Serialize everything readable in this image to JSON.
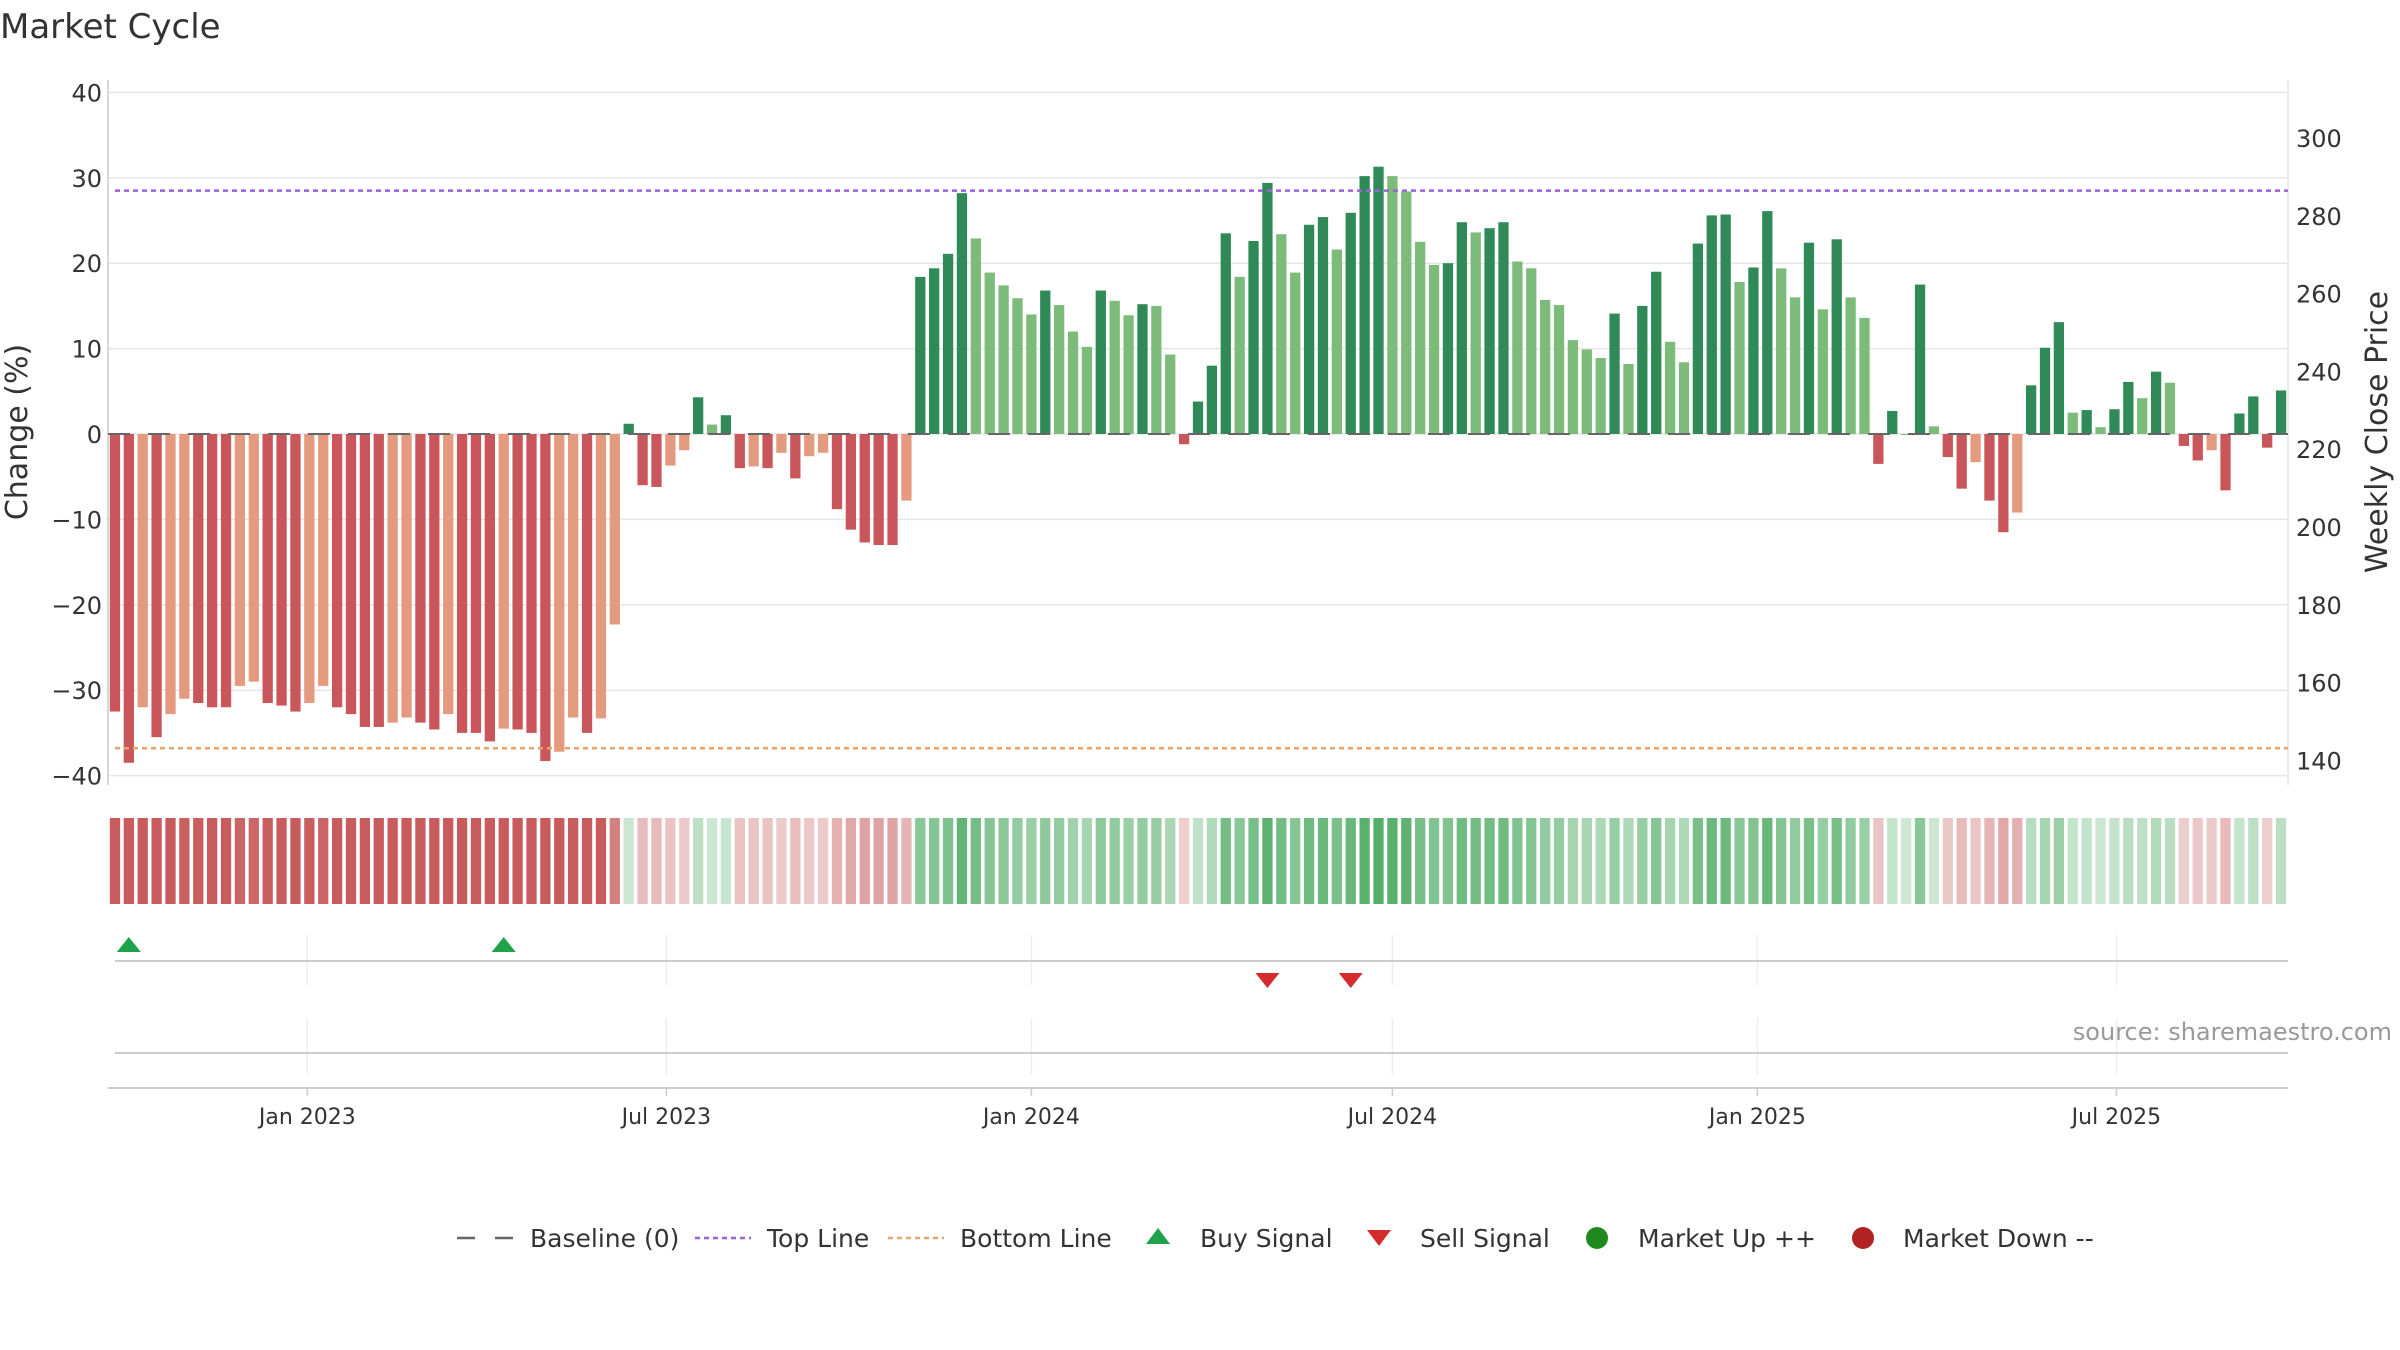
{
  "chart_data": {
    "type": "bar",
    "title": "Market Cycle",
    "ylabel": "Change (%)",
    "y2label": "Weekly Close Price",
    "ylim": [
      -40,
      40
    ],
    "y2lim": [
      140,
      300
    ],
    "yticks": [
      40,
      30,
      20,
      10,
      0,
      -10,
      -20,
      -30,
      -40
    ],
    "y2ticks": [
      300,
      280,
      260,
      240,
      220,
      200,
      180,
      160,
      140
    ],
    "top_line": 28.5,
    "bottom_line": -36.8,
    "x_start": "2022-09-26",
    "week_days": 7,
    "xticks": [
      {
        "date": "2023-01-01",
        "label": "Jan 2023"
      },
      {
        "date": "2023-07-01",
        "label": "Jul 2023"
      },
      {
        "date": "2024-01-01",
        "label": "Jan 2024"
      },
      {
        "date": "2024-07-01",
        "label": "Jul 2024"
      },
      {
        "date": "2025-01-01",
        "label": "Jan 2025"
      },
      {
        "date": "2025-07-01",
        "label": "Jul 2025"
      }
    ],
    "values": [
      -32.5,
      -38.5,
      -32,
      -35.5,
      -32.8,
      -31,
      -31.5,
      -32,
      -32,
      -29.5,
      -29,
      -31.5,
      -31.8,
      -32.5,
      -31.5,
      -29.5,
      -32,
      -32.8,
      -34.3,
      -34.3,
      -33.8,
      -33.2,
      -33.8,
      -34.6,
      -32.8,
      -35,
      -35,
      -36,
      -34.5,
      -34.6,
      -35,
      -38.3,
      -37.2,
      -33.2,
      -35,
      -33.3,
      -22.3,
      1.2,
      -6,
      -6.2,
      -3.7,
      -1.9,
      4.3,
      1.1,
      2.2,
      -4,
      -3.8,
      -4,
      -2.2,
      -5.2,
      -2.6,
      -2.2,
      -8.8,
      -11.2,
      -12.7,
      -13,
      -13,
      -7.8,
      18.4,
      19.4,
      21.1,
      28.2,
      22.9,
      18.9,
      17.4,
      15.9,
      14,
      16.8,
      15.1,
      12,
      10.2,
      16.8,
      15.6,
      13.9,
      15.2,
      15,
      9.3,
      -1.2,
      3.8,
      8,
      23.5,
      18.4,
      22.6,
      29.4,
      23.4,
      18.9,
      24.5,
      25.4,
      21.6,
      25.9,
      30.2,
      31.3,
      30.2,
      28.4,
      22.5,
      19.8,
      20,
      24.8,
      23.6,
      24.1,
      24.8,
      20.2,
      19.4,
      15.7,
      15.1,
      11,
      9.9,
      8.9,
      14.1,
      8.2,
      15,
      19,
      10.8,
      8.4,
      22.3,
      25.6,
      25.7,
      17.8,
      19.5,
      26.1,
      19.4,
      16,
      22.4,
      14.6,
      22.8,
      16,
      13.6,
      -3.5,
      2.7,
      0,
      17.5,
      0.9,
      -2.7,
      -6.4,
      -3.3,
      -7.8,
      -11.5,
      -9.2,
      5.7,
      10.1,
      13.1,
      2.5,
      2.8,
      0.8,
      2.9,
      6.1,
      4.2,
      7.3,
      6,
      -1.4,
      -3.1,
      -1.9,
      -6.6,
      2.4,
      4.4,
      -1.6,
      5.1
    ],
    "buy_signals": [
      "2022-10-03",
      "2023-04-10"
    ],
    "sell_signals": [
      "2024-04-29",
      "2024-06-10"
    ],
    "legend": [
      {
        "key": "baseline",
        "label": "Baseline (0)"
      },
      {
        "key": "top",
        "label": "Top Line"
      },
      {
        "key": "bottom",
        "label": "Bottom Line"
      },
      {
        "key": "buy",
        "label": "Buy Signal"
      },
      {
        "key": "sell",
        "label": "Sell Signal"
      },
      {
        "key": "up",
        "label": "Market Up ++"
      },
      {
        "key": "down",
        "label": "Market Down --"
      }
    ],
    "legend_position": "bottom",
    "grid": true
  },
  "source_text": "source: sharemaestro.com",
  "colors": {
    "strong_up": "#2f8a58",
    "weak_up": "#7dbb7a",
    "strong_down": "#c9565a",
    "weak_down": "#e39a7e",
    "top_line": "#9a63d8",
    "bottom_line": "#e7a468",
    "baseline": "#666666",
    "buy": "#1fa24a",
    "sell": "#d42c2c",
    "market_up": "#1e8a1e",
    "market_down": "#b22222",
    "grid": "#e6e6e6"
  }
}
